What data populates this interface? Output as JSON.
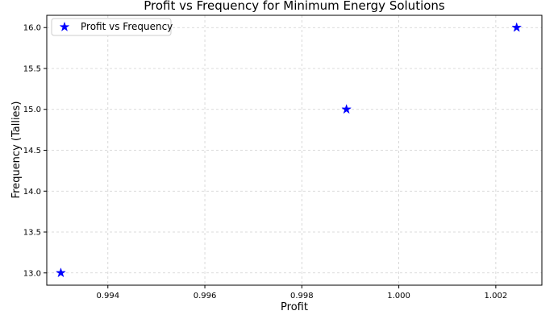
{
  "chart_data": {
    "type": "scatter",
    "title": "Profit vs Frequency for Minimum Energy Solutions",
    "xlabel": "Profit",
    "ylabel": "Frequency (Tallies)",
    "xlim": [
      0.99274,
      1.00295
    ],
    "ylim": [
      12.85,
      16.15
    ],
    "xticks": [
      0.994,
      0.996,
      0.998,
      1.0,
      1.002
    ],
    "xtick_labels": [
      "0.994",
      "0.996",
      "0.998",
      "1.000",
      "1.002"
    ],
    "yticks": [
      13.0,
      13.5,
      14.0,
      14.5,
      15.0,
      15.5,
      16.0
    ],
    "ytick_labels": [
      "13.0",
      "13.5",
      "14.0",
      "14.5",
      "15.0",
      "15.5",
      "16.0"
    ],
    "grid": true,
    "legend_position": "top-left",
    "series": [
      {
        "name": "Profit vs Frequency",
        "marker": "star",
        "color": "#0000ff",
        "points": [
          {
            "x": 0.99303,
            "y": 13
          },
          {
            "x": 0.99892,
            "y": 15
          },
          {
            "x": 1.00243,
            "y": 16
          }
        ]
      }
    ]
  }
}
